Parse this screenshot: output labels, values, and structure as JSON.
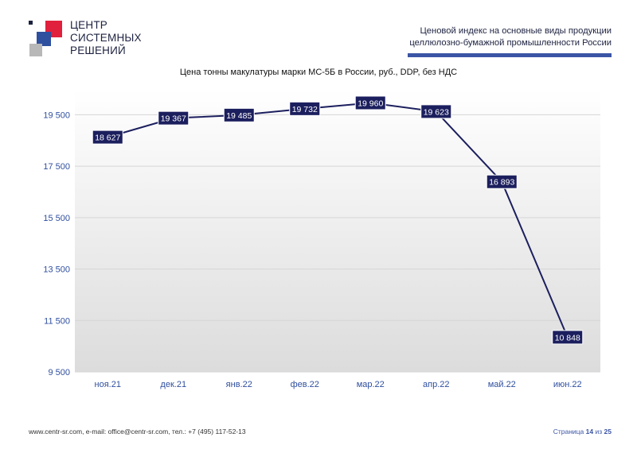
{
  "logo": {
    "line1": "ЦЕНТР",
    "line2": "СИСТЕМНЫХ",
    "line3": "РЕШЕНИЙ",
    "colors": {
      "red": "#e0203c",
      "blue": "#2f4f9f",
      "grey": "#b8b8b8",
      "dark": "#1d2240"
    }
  },
  "header": {
    "line1": "Ценовой индекс на основные виды продукции",
    "line2": "целлюлозно-бумажной промышленности России",
    "accent_color": "#3b55a5"
  },
  "chart_data": {
    "type": "line",
    "title": "Цена тонны макулатуры марки МС-5Б в России, руб., DDP, без НДС",
    "categories": [
      "ноя.21",
      "дек.21",
      "янв.22",
      "фев.22",
      "мар.22",
      "апр.22",
      "май.22",
      "июн.22"
    ],
    "values": [
      18627,
      19367,
      19485,
      19732,
      19960,
      19623,
      16893,
      10848
    ],
    "data_labels": [
      "18 627",
      "19 367",
      "19 485",
      "19 732",
      "19 960",
      "19 623",
      "16 893",
      "10 848"
    ],
    "yticks": [
      9500,
      11500,
      13500,
      15500,
      17500,
      19500
    ],
    "ytick_labels": [
      "9 500",
      "11 500",
      "13 500",
      "15 500",
      "17 500",
      "19 500"
    ],
    "ylim": [
      9500,
      20500
    ],
    "grid": true,
    "legend": "none",
    "line_color": "#1c1f5e",
    "label_bg": "#1c1f5e",
    "label_fg": "#ffffff",
    "category_color": "#2f4f9f"
  },
  "footer": {
    "contacts": "www.centr-sr.com, e-mail: office@centr-sr.com, тел.: +7 (495) 117-52-13",
    "page_word": "Страница",
    "page_current": "14",
    "page_of": "из",
    "page_total": "25"
  }
}
